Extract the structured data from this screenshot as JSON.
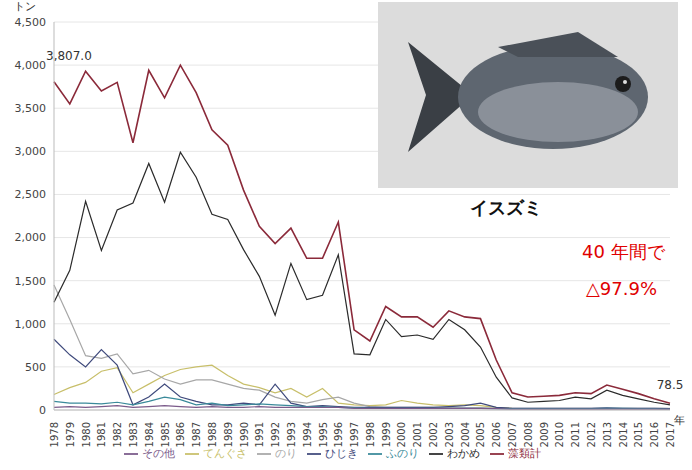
{
  "chart_data": {
    "type": "line",
    "y_label": "トン",
    "x_label": "年",
    "categories": [
      "1978",
      "1979",
      "1980",
      "1981",
      "1982",
      "1983",
      "1984",
      "1985",
      "1986",
      "1987",
      "1988",
      "1989",
      "1990",
      "1991",
      "1992",
      "1993",
      "1994",
      "1995",
      "1996",
      "1997",
      "1998",
      "1999",
      "2000",
      "2001",
      "2002",
      "2003",
      "2004",
      "2005",
      "2006",
      "2007",
      "2008",
      "2009",
      "2010",
      "2011",
      "2012",
      "2013",
      "2014",
      "2015",
      "2016",
      "2017"
    ],
    "series": [
      {
        "name": "てんぐさ",
        "color": "#c8bf6a",
        "values": [
          180,
          260,
          320,
          450,
          490,
          200,
          300,
          400,
          470,
          500,
          520,
          400,
          300,
          260,
          200,
          250,
          150,
          250,
          80,
          60,
          50,
          60,
          110,
          80,
          60,
          50,
          60,
          50,
          30,
          20,
          15,
          15,
          15,
          15,
          15,
          15,
          15,
          15,
          15,
          15
        ]
      },
      {
        "name": "のり",
        "color": "#a7a7a7",
        "values": [
          1450,
          1050,
          630,
          600,
          650,
          420,
          460,
          360,
          300,
          350,
          350,
          300,
          250,
          230,
          150,
          100,
          80,
          120,
          150,
          80,
          40,
          30,
          30,
          30,
          30,
          25,
          25,
          25,
          20,
          20,
          20,
          20,
          20,
          20,
          20,
          20,
          20,
          20,
          20,
          20
        ]
      },
      {
        "name": "ひじき",
        "color": "#3f4a7c",
        "values": [
          820,
          640,
          500,
          700,
          520,
          60,
          150,
          300,
          150,
          100,
          60,
          60,
          80,
          60,
          300,
          80,
          40,
          50,
          40,
          30,
          30,
          30,
          30,
          30,
          30,
          40,
          50,
          80,
          30,
          20,
          20,
          20,
          20,
          20,
          20,
          25,
          20,
          20,
          20,
          15
        ]
      },
      {
        "name": "ふのり",
        "color": "#3a8a9a",
        "values": [
          100,
          80,
          80,
          70,
          90,
          60,
          100,
          150,
          120,
          60,
          80,
          50,
          60,
          70,
          60,
          50,
          40,
          40,
          30,
          25,
          20,
          20,
          20,
          20,
          20,
          20,
          20,
          20,
          15,
          15,
          15,
          15,
          15,
          15,
          15,
          20,
          20,
          15,
          15,
          10
        ]
      },
      {
        "name": "わかめ",
        "color": "#2b2b2b",
        "values": [
          1250,
          1620,
          2420,
          1850,
          2320,
          2400,
          2860,
          2410,
          2990,
          2700,
          2270,
          2210,
          1860,
          1550,
          1100,
          1700,
          1280,
          1330,
          1800,
          650,
          640,
          1050,
          850,
          870,
          820,
          1050,
          930,
          730,
          380,
          140,
          90,
          100,
          110,
          150,
          130,
          230,
          170,
          130,
          90,
          60
        ]
      },
      {
        "name": "その他",
        "color": "#7a5a8a",
        "values": [
          30,
          40,
          30,
          40,
          50,
          30,
          40,
          50,
          40,
          30,
          40,
          30,
          30,
          40,
          30,
          30,
          30,
          30,
          30,
          20,
          20,
          20,
          20,
          20,
          20,
          20,
          20,
          20,
          15,
          10,
          10,
          10,
          10,
          10,
          10,
          10,
          10,
          10,
          10,
          10
        ]
      },
      {
        "name": "藻類計",
        "color": "#8b2a3a",
        "values": [
          3807,
          3550,
          3930,
          3700,
          3800,
          3100,
          3940,
          3620,
          4000,
          3680,
          3250,
          3070,
          2550,
          2130,
          1930,
          2110,
          1760,
          1760,
          2180,
          930,
          800,
          1200,
          1080,
          1080,
          960,
          1150,
          1080,
          1060,
          580,
          200,
          150,
          160,
          170,
          200,
          190,
          290,
          240,
          190,
          130,
          78.5
        ],
        "value_labels": [
          "3,807.0",
          null,
          null,
          null,
          null,
          null,
          null,
          null,
          null,
          null,
          null,
          null,
          null,
          null,
          null,
          null,
          null,
          null,
          null,
          null,
          null,
          null,
          null,
          null,
          null,
          null,
          null,
          null,
          null,
          null,
          null,
          null,
          null,
          null,
          null,
          null,
          null,
          null,
          null,
          "78.5"
        ]
      }
    ],
    "ylim": [
      0,
      4500
    ],
    "yticks": [
      0,
      500,
      {
        "value": 1000,
        "label": "1,000"
      },
      {
        "value": 1500,
        "label": "1,500"
      },
      {
        "value": 2000,
        "label": "2,000"
      },
      {
        "value": 2500,
        "label": "2,500"
      },
      {
        "value": 3000,
        "label": "3,000"
      },
      {
        "value": 3500,
        "label": "3,500"
      },
      {
        "value": 4000,
        "label": "4,000"
      },
      {
        "value": 4500,
        "label": "4,500"
      }
    ],
    "grid": true,
    "legend": "bottom",
    "annotations": [
      "イスズミ",
      "40 年間で",
      "△97.9%"
    ]
  }
}
